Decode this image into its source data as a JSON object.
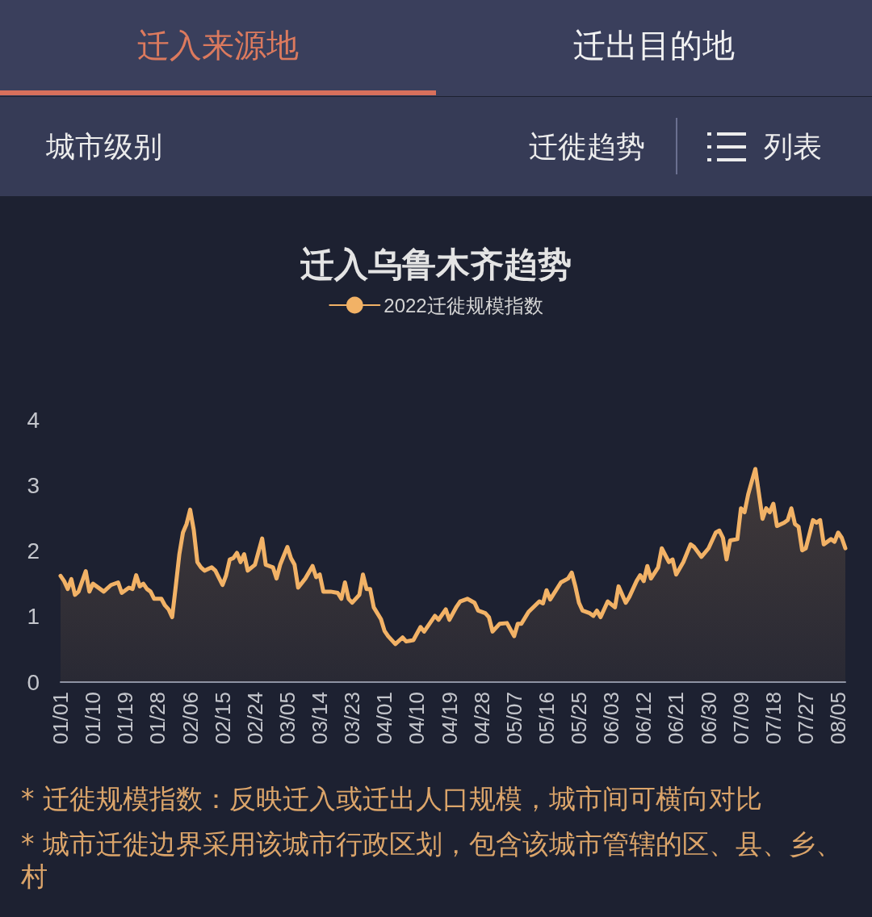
{
  "chart_data": {
    "type": "area",
    "title": "迁入乌鲁木齐趋势",
    "legend": "top",
    "grid": false,
    "annotations": [
      "迁入来源地",
      "迁出目的地",
      "城市级别",
      "迁徙趋势",
      "列表",
      "* 迁徙规模指数：反映迁入或迁出人口规模，城市间可横向对比",
      "* 城市迁徙边界采用该城市行政区划，包含该城市管辖的区、县、乡、村"
    ],
    "xlim": [
      "--01-01",
      "--08-07"
    ],
    "xticks": [
      {
        "value": "--01-01",
        "label": "01/01"
      },
      {
        "value": "--01-10",
        "label": "01/10"
      },
      {
        "value": "--01-19",
        "label": "01/19"
      },
      {
        "value": "--01-28",
        "label": "01/28"
      },
      {
        "value": "--02-06",
        "label": "02/06"
      },
      {
        "value": "--02-15",
        "label": "02/15"
      },
      {
        "value": "--02-24",
        "label": "02/24"
      },
      {
        "value": "--03-05",
        "label": "03/05"
      },
      {
        "value": "--03-14",
        "label": "03/14"
      },
      {
        "value": "--03-23",
        "label": "03/23"
      },
      {
        "value": "--04-01",
        "label": "04/01"
      },
      {
        "value": "--04-10",
        "label": "04/10"
      },
      {
        "value": "--04-19",
        "label": "04/19"
      },
      {
        "value": "--04-28",
        "label": "04/28"
      },
      {
        "value": "--05-07",
        "label": "05/07"
      },
      {
        "value": "--05-16",
        "label": "05/16"
      },
      {
        "value": "--05-25",
        "label": "05/25"
      },
      {
        "value": "--06-03",
        "label": "06/03"
      },
      {
        "value": "--06-12",
        "label": "06/12"
      },
      {
        "value": "--06-21",
        "label": "06/21"
      },
      {
        "value": "--06-30",
        "label": "06/30"
      },
      {
        "value": "--07-09",
        "label": "07/09"
      },
      {
        "value": "--07-18",
        "label": "07/18"
      },
      {
        "value": "--07-27",
        "label": "07/27"
      },
      {
        "value": "--08-05",
        "label": "08/05"
      }
    ],
    "ylim": [
      0,
      4
    ],
    "yticks": [
      0,
      1,
      2,
      3,
      4
    ],
    "x": [
      "--01-01",
      "--01-02",
      "--01-03",
      "--01-04",
      "--01-05",
      "--01-06",
      "--01-08",
      "--01-09",
      "--01-10",
      "--01-11",
      "--01-13",
      "--01-15",
      "--01-17",
      "--01-18",
      "--01-20",
      "--01-21",
      "--01-22",
      "--01-23",
      "--01-24",
      "--01-25",
      "--01-26",
      "--01-27",
      "--01-29",
      "--01-30",
      "--01-31",
      "--02-01",
      "--02-02",
      "--02-03",
      "--02-04",
      "--02-05",
      "--02-06",
      "--02-07",
      "--02-08",
      "--02-09",
      "--02-10",
      "--02-12",
      "--02-13",
      "--02-15",
      "--02-16",
      "--02-17",
      "--02-18",
      "--02-19",
      "--02-20",
      "--02-21",
      "--02-22",
      "--02-24",
      "--02-26",
      "--02-27",
      "--03-01",
      "--03-02",
      "--03-03",
      "--03-05",
      "--03-06",
      "--03-07",
      "--03-08",
      "--03-10",
      "--03-12",
      "--03-13",
      "--03-14",
      "--03-15",
      "--03-17",
      "--03-19",
      "--03-20",
      "--03-21",
      "--03-22",
      "--03-23",
      "--03-25",
      "--03-26",
      "--03-27",
      "--03-28",
      "--03-29",
      "--03-31",
      "--04-01",
      "--04-02",
      "--04-04",
      "--04-06",
      "--04-07",
      "--04-09",
      "--04-11",
      "--04-12",
      "--04-15",
      "--04-16",
      "--04-18",
      "--04-19",
      "--04-21",
      "--04-22",
      "--04-24",
      "--04-26",
      "--04-27",
      "--04-29",
      "--04-30",
      "--05-01",
      "--05-03",
      "--05-05",
      "--05-07",
      "--05-08",
      "--05-09",
      "--05-11",
      "--05-14",
      "--05-15",
      "--05-16",
      "--05-17",
      "--05-20",
      "--05-22",
      "--05-23",
      "--05-24",
      "--05-25",
      "--05-26",
      "--05-28",
      "--05-29",
      "--05-30",
      "--05-31",
      "--06-02",
      "--06-04",
      "--06-05",
      "--06-07",
      "--06-08",
      "--06-10",
      "--06-11",
      "--06-12",
      "--06-13",
      "--06-14",
      "--06-16",
      "--06-17",
      "--06-19",
      "--06-20",
      "--06-21",
      "--06-23",
      "--06-25",
      "--06-26",
      "--06-28",
      "--06-30",
      "--07-02",
      "--07-03",
      "--07-04",
      "--07-05",
      "--07-06",
      "--07-08",
      "--07-09",
      "--07-10",
      "--07-11",
      "--07-12",
      "--07-13",
      "--07-15",
      "--07-16",
      "--07-17",
      "--07-18",
      "--07-19",
      "--07-21",
      "--07-22",
      "--07-23",
      "--07-24",
      "--07-25",
      "--07-26",
      "--07-27",
      "--07-28",
      "--07-29",
      "--07-30",
      "--07-31",
      "--08-01",
      "--08-03",
      "--08-04",
      "--08-05",
      "--08-06",
      "--08-07"
    ],
    "series": [
      {
        "name": "2022迁徙规模指数",
        "color": "#f2b266",
        "values": [
          1.62,
          1.54,
          1.42,
          1.57,
          1.33,
          1.38,
          1.69,
          1.38,
          1.5,
          1.46,
          1.38,
          1.48,
          1.52,
          1.36,
          1.44,
          1.42,
          1.63,
          1.46,
          1.5,
          1.42,
          1.38,
          1.27,
          1.27,
          1.17,
          1.11,
          0.99,
          1.46,
          1.95,
          2.28,
          2.41,
          2.63,
          2.32,
          1.83,
          1.75,
          1.7,
          1.75,
          1.7,
          1.48,
          1.63,
          1.87,
          1.89,
          1.97,
          1.83,
          1.95,
          1.7,
          1.79,
          2.19,
          1.79,
          1.75,
          1.58,
          1.79,
          2.06,
          1.89,
          1.79,
          1.44,
          1.58,
          1.77,
          1.6,
          1.64,
          1.38,
          1.38,
          1.36,
          1.27,
          1.52,
          1.27,
          1.21,
          1.33,
          1.64,
          1.42,
          1.42,
          1.14,
          0.96,
          0.78,
          0.7,
          0.58,
          0.68,
          0.62,
          0.64,
          0.84,
          0.77,
          1.01,
          0.95,
          1.11,
          0.95,
          1.15,
          1.23,
          1.27,
          1.21,
          1.09,
          1.05,
          0.99,
          0.77,
          0.89,
          0.9,
          0.7,
          0.89,
          0.89,
          1.07,
          1.23,
          1.2,
          1.4,
          1.26,
          1.52,
          1.58,
          1.67,
          1.46,
          1.21,
          1.09,
          1.05,
          1.01,
          1.09,
          0.99,
          1.23,
          1.14,
          1.46,
          1.21,
          1.3,
          1.54,
          1.63,
          1.54,
          1.77,
          1.58,
          1.75,
          2.04,
          1.83,
          1.87,
          1.64,
          1.83,
          2.1,
          2.06,
          1.91,
          2.04,
          2.28,
          2.31,
          2.2,
          1.87,
          2.16,
          2.18,
          2.65,
          2.59,
          2.86,
          3.06,
          3.25,
          2.49,
          2.65,
          2.59,
          2.72,
          2.38,
          2.43,
          2.47,
          2.65,
          2.41,
          2.37,
          2.01,
          2.04,
          2.25,
          2.47,
          2.43,
          2.47,
          2.1,
          2.18,
          2.14,
          2.28,
          2.2,
          2.04
        ]
      }
    ]
  }
}
